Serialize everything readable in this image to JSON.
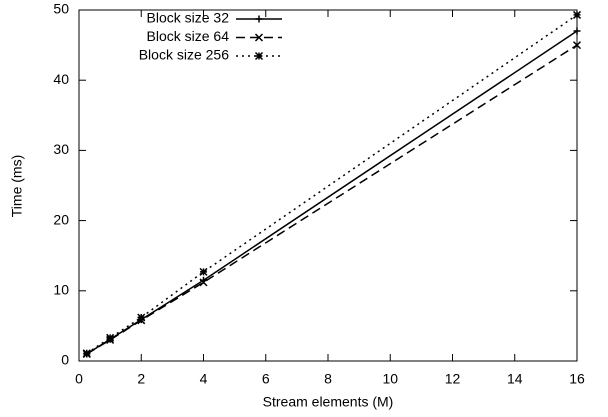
{
  "chart_data": {
    "type": "line",
    "x_label": "Stream elements (M)",
    "y_label": "Time (ms)",
    "x": [
      0.25,
      1,
      2,
      4,
      16
    ],
    "series": [
      {
        "name": "Block size 32",
        "color": "#000000",
        "dash": "solid",
        "values": [
          1.0,
          3.1,
          5.9,
          11.5,
          47.0
        ]
      },
      {
        "name": "Block size 64",
        "color": "#000000",
        "dash": "dashed",
        "values": [
          1.0,
          3.0,
          5.8,
          11.2,
          45.0
        ]
      },
      {
        "name": "Block size 256",
        "color": "#000000",
        "dash": "dotted",
        "values": [
          1.1,
          3.3,
          6.2,
          12.7,
          49.3
        ]
      }
    ],
    "xlim": [
      0,
      16
    ],
    "xticks": [
      0,
      2,
      4,
      6,
      8,
      10,
      12,
      14,
      16
    ],
    "ylim": [
      0,
      50
    ],
    "yticks": [
      0,
      10,
      20,
      30,
      40,
      50
    ],
    "grid": false,
    "legend": "top-left"
  }
}
